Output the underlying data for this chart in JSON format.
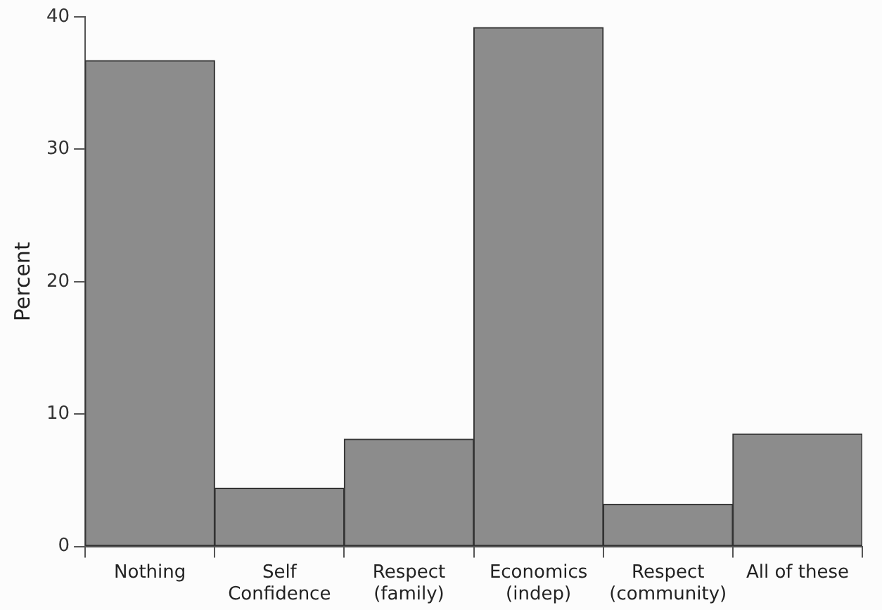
{
  "chart_data": {
    "type": "bar",
    "ylabel": "Percent",
    "categories": [
      "Nothing",
      "Self\nConfidence",
      "Respect\n(family)",
      "Economics\n(indep)",
      "Respect\n(community)",
      "All of these"
    ],
    "values": [
      36.7,
      4.4,
      8.1,
      39.2,
      3.2,
      8.5
    ],
    "color": "#8c8c8c",
    "ylim": [
      0,
      40
    ],
    "yticks": [
      0,
      10,
      20,
      30,
      40
    ],
    "grid": false,
    "legend": false
  }
}
